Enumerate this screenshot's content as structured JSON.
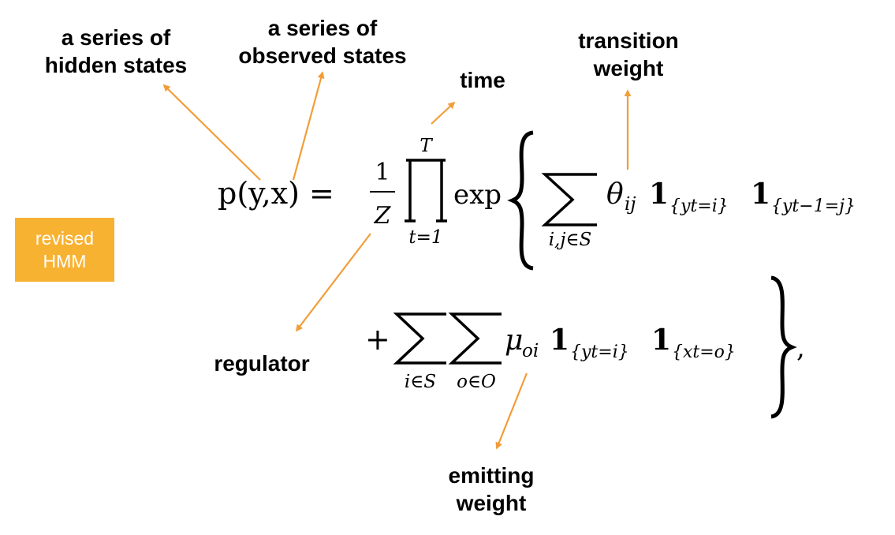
{
  "colors": {
    "accent": "#f29d38",
    "badge": "#f8b232"
  },
  "badge": {
    "line1": "revised",
    "line2": "HMM"
  },
  "labels": {
    "hidden_states": [
      "a series of",
      "hidden states"
    ],
    "observed_states": [
      "a series of",
      "observed states"
    ],
    "time": [
      "time"
    ],
    "transition_weight": [
      "transition",
      "weight"
    ],
    "regulator": [
      "regulator"
    ],
    "emitting_weight": [
      "emitting",
      "weight"
    ]
  },
  "equation": {
    "lhs": "p(y,x) =",
    "frac_num": "1",
    "frac_den": "Z",
    "prod_upper": "T",
    "prod_lower": "t=1",
    "exp": "exp",
    "sum1_lower": "i,j∈S",
    "theta": "θ",
    "theta_sub": "ij",
    "one": "1",
    "ind_yt_i": "{yt=i}",
    "ind_yt1_j": "{yt−1=j}",
    "plus": "+",
    "sum2_lower": "i∈S",
    "sum3_lower": "o∈O",
    "mu": "μ",
    "mu_sub": "oi",
    "ind_xt_o": "{xt=o}",
    "comma": ","
  }
}
